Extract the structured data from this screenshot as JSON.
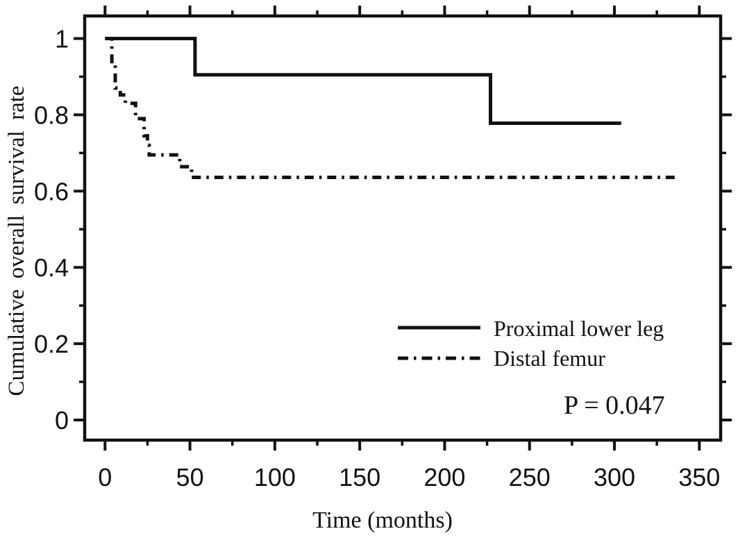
{
  "figure": {
    "background_color": "#ffffff",
    "axis_color": "#111111"
  },
  "chart_data": {
    "type": "line",
    "subtype": "kaplan-meier-step",
    "title": "",
    "xlabel": "Time (months)",
    "ylabel": "Cumulative overall survival rate",
    "xlim": [
      -12,
      362
    ],
    "ylim": [
      -0.053,
      1.06
    ],
    "grid": false,
    "legend_position": "lower-right-inside",
    "x_ticks_major": [
      0,
      50,
      100,
      150,
      200,
      250,
      300,
      350
    ],
    "x_tick_labels": [
      "0",
      "50",
      "100",
      "150",
      "200",
      "250",
      "300",
      "350"
    ],
    "x_ticks_minor": [
      25,
      75,
      125,
      175,
      225,
      275,
      325
    ],
    "y_ticks_major": [
      0,
      0.2,
      0.4,
      0.6,
      0.8,
      1
    ],
    "y_tick_labels": [
      "0",
      "0.2",
      "0.4",
      "0.6",
      "0.8",
      "1"
    ],
    "y_ticks_minor": [
      0.1,
      0.3,
      0.5,
      0.7,
      0.9
    ],
    "annotation": {
      "text": "P = 0.047"
    },
    "series": [
      {
        "name": "Proximal lower leg",
        "line_style": "solid",
        "color": "#111111",
        "steps": [
          [
            0,
            1.0
          ],
          [
            53,
            1.0
          ],
          [
            53,
            0.905
          ],
          [
            227,
            0.905
          ],
          [
            227,
            0.778
          ],
          [
            304,
            0.778
          ]
        ]
      },
      {
        "name": "Distal femur",
        "line_style": "dash-dot",
        "color": "#111111",
        "steps": [
          [
            0,
            1.0
          ],
          [
            4,
            1.0
          ],
          [
            4,
            0.93
          ],
          [
            6,
            0.93
          ],
          [
            6,
            0.87
          ],
          [
            9,
            0.87
          ],
          [
            9,
            0.852
          ],
          [
            12,
            0.852
          ],
          [
            12,
            0.83
          ],
          [
            18,
            0.83
          ],
          [
            18,
            0.79
          ],
          [
            23,
            0.79
          ],
          [
            23,
            0.745
          ],
          [
            25,
            0.745
          ],
          [
            25,
            0.72
          ],
          [
            26,
            0.72
          ],
          [
            26,
            0.695
          ],
          [
            44,
            0.695
          ],
          [
            44,
            0.664
          ],
          [
            51,
            0.664
          ],
          [
            51,
            0.636
          ],
          [
            338,
            0.636
          ]
        ]
      }
    ]
  }
}
